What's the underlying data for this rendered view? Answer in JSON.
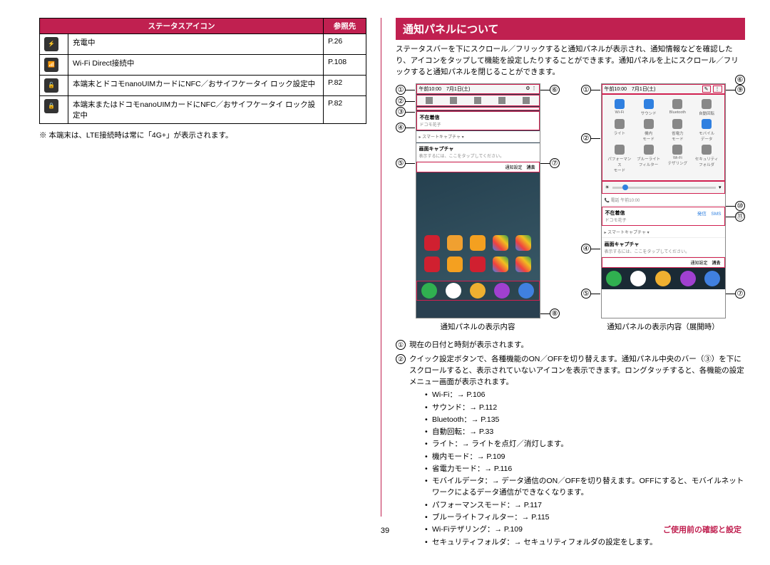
{
  "left": {
    "table": {
      "header_icon": "ステータスアイコン",
      "header_ref": "参照先",
      "rows": [
        {
          "icon": "⚡",
          "desc": "充電中",
          "ref": "P.26"
        },
        {
          "icon": "📶",
          "desc": "Wi-Fi Direct接続中",
          "ref": "P.108"
        },
        {
          "icon": "🔓",
          "desc": "本端末とドコモnanoUIMカードにNFC／おサイフケータイ ロック設定中",
          "ref": "P.82"
        },
        {
          "icon": "🔒",
          "desc": "本端末またはドコモnanoUIMカードにNFC／おサイフケータイ ロック設定中",
          "ref": "P.82"
        }
      ]
    },
    "note": "※ 本端末は、LTE接続時は常に「4G+」が表示されます。"
  },
  "right": {
    "header": "通知パネルについて",
    "intro": "ステータスバーを下にスクロール／フリックすると通知パネルが表示され、通知情報などを確認したり、アイコンをタップして機能を設定したりすることができます。通知パネルを上にスクロール／フリックすると通知パネルを閉じることができます。",
    "phone_time": "午前10:00",
    "phone_date": "7月1日(土)",
    "notif1_title": "不在着信",
    "notif1_sub": "ドコモ花子",
    "notif2_title": "画面キャプチャ",
    "notif2_sub": "表示するには、ここをタップしてください。",
    "notif_smart": "▸ スマートキャプチャ ▾",
    "notif_link1": "発信",
    "notif_link2": "SMS",
    "footer_settings": "通知設定",
    "footer_clear": "消去",
    "qs": {
      "r1": [
        "Wi-Fi",
        "サウンド",
        "Bluetooth",
        "自動回転"
      ],
      "r2": [
        "ライト",
        "機内\nモード",
        "省電力\nモード",
        "モバイル\nデータ"
      ],
      "r3": [
        "パフォーマンス\nモード",
        "ブルーライト\nフィルター",
        "Wi-Fi\nテザリング",
        "セキュリティ\nフォルダ"
      ]
    },
    "caption1": "通知パネルの表示内容",
    "caption2": "通知パネルの表示内容（展開時）",
    "callouts": {
      "c1": "①",
      "c2": "②",
      "c3": "③",
      "c4": "④",
      "c5": "⑤",
      "c6": "⑥",
      "c7": "⑦",
      "c8": "⑧",
      "c9": "⑨",
      "c10": "⑩",
      "c11": "⑪"
    },
    "desc": [
      {
        "n": "①",
        "text": "現在の日付と時刻が表示されます。"
      },
      {
        "n": "②",
        "text": "クイック設定ボタンで、各種機能のON／OFFを切り替えます。通知パネル中央のバー（③）を下にスクロールすると、表示されていないアイコンを表示できます。ロングタッチすると、各機能の設定メニュー画面が表示されます。",
        "sub": [
          "Wi-Fi：→ P.106",
          "サウンド：→ P.112",
          "Bluetooth：→ P.135",
          "自動回転：→ P.33",
          "ライト：→ ライトを点灯／消灯します。",
          "機内モード：→ P.109",
          "省電力モード：→ P.116",
          "モバイルデータ：→ データ通信のON／OFFを切り替えます。OFFにすると、モバイルネットワークによるデータ通信ができなくなります。",
          "パフォーマンスモード：→ P.117",
          "ブルーライトフィルター：→ P.115",
          "Wi-Fiテザリング：→ P.109",
          "セキュリティフォルダ：→ セキュリティフォルダの設定をします。"
        ]
      }
    ]
  },
  "page_num": "39",
  "footer_label": "ご使用前の確認と設定",
  "colors": {
    "accent": "#c02050",
    "box": "#d02050"
  }
}
